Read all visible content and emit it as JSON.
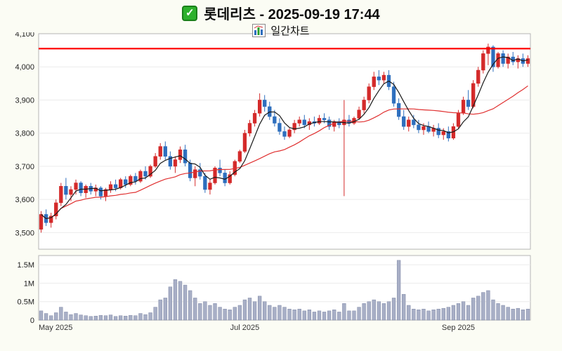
{
  "header": {
    "title": "롯데리츠 - 2025-09-19 17:44",
    "subtitle": "일간차트",
    "icons": {
      "checkbox": "green-check-icon",
      "chart": "mini-bar-chart-icon"
    }
  },
  "chart_data": {
    "type": "candlestick",
    "title": "롯데리츠 일간차트",
    "legend_position": "none",
    "grid": true,
    "candle_format": "[open, high, low, close, volume_millions]",
    "price_axis": {
      "min": 3450,
      "max": 4100,
      "ticks": [
        {
          "value": 4100,
          "label": "4,100"
        },
        {
          "value": 4000,
          "label": "4,000"
        },
        {
          "value": 3900,
          "label": "3,900"
        },
        {
          "value": 3800,
          "label": "3,800"
        },
        {
          "value": 3700,
          "label": "3,700"
        },
        {
          "value": 3600,
          "label": "3,600"
        },
        {
          "value": 3500,
          "label": "3,500"
        }
      ]
    },
    "volume_axis": {
      "max": 1.75,
      "ticks": [
        {
          "value": 1.5,
          "label": "1.5M"
        },
        {
          "value": 1.0,
          "label": "1M"
        },
        {
          "value": 0.5,
          "label": "0.5M"
        },
        {
          "value": 0,
          "label": "0"
        }
      ]
    },
    "x_ticks": [
      {
        "index": 0,
        "label": "May 2025",
        "align": "start"
      },
      {
        "index": 41,
        "label": "Jul 2025",
        "align": "middle"
      },
      {
        "index": 84,
        "label": "Sep 2025",
        "align": "middle"
      }
    ],
    "resistance_line": 4055,
    "ma_short_period": 5,
    "ma_long_period": 20,
    "colors": {
      "up": "#d42a2a",
      "down": "#2e6fbe",
      "volume": "#a8afc6",
      "volume_edge": "#7f88a6",
      "resistance": "#ff0000",
      "ma_short": "#1a1a1a",
      "ma_long": "#e03030",
      "grid": "#ececec",
      "border": "#b5b5b5"
    },
    "candles": [
      [
        3510,
        3565,
        3500,
        3555,
        0.25
      ],
      [
        3555,
        3570,
        3520,
        3530,
        0.18
      ],
      [
        3530,
        3560,
        3515,
        3550,
        0.12
      ],
      [
        3550,
        3600,
        3540,
        3590,
        0.2
      ],
      [
        3590,
        3650,
        3580,
        3640,
        0.35
      ],
      [
        3640,
        3665,
        3600,
        3615,
        0.22
      ],
      [
        3615,
        3640,
        3595,
        3630,
        0.15
      ],
      [
        3630,
        3660,
        3615,
        3650,
        0.18
      ],
      [
        3650,
        3655,
        3610,
        3620,
        0.14
      ],
      [
        3620,
        3645,
        3605,
        3640,
        0.12
      ],
      [
        3640,
        3650,
        3615,
        3625,
        0.1
      ],
      [
        3625,
        3645,
        3610,
        3635,
        0.11
      ],
      [
        3635,
        3640,
        3600,
        3610,
        0.13
      ],
      [
        3610,
        3635,
        3595,
        3630,
        0.12
      ],
      [
        3630,
        3655,
        3620,
        3645,
        0.14
      ],
      [
        3645,
        3660,
        3625,
        3635,
        0.1
      ],
      [
        3635,
        3665,
        3630,
        3660,
        0.12
      ],
      [
        3660,
        3670,
        3635,
        3645,
        0.11
      ],
      [
        3645,
        3675,
        3640,
        3670,
        0.13
      ],
      [
        3670,
        3680,
        3645,
        3655,
        0.12
      ],
      [
        3655,
        3690,
        3650,
        3685,
        0.18
      ],
      [
        3685,
        3700,
        3660,
        3670,
        0.15
      ],
      [
        3670,
        3705,
        3665,
        3700,
        0.2
      ],
      [
        3700,
        3740,
        3695,
        3730,
        0.35
      ],
      [
        3730,
        3770,
        3720,
        3760,
        0.55
      ],
      [
        3760,
        3775,
        3720,
        3730,
        0.6
      ],
      [
        3730,
        3745,
        3690,
        3700,
        0.9
      ],
      [
        3700,
        3730,
        3680,
        3720,
        1.1
      ],
      [
        3720,
        3760,
        3710,
        3750,
        1.05
      ],
      [
        3750,
        3765,
        3700,
        3710,
        0.95
      ],
      [
        3710,
        3720,
        3655,
        3665,
        0.8
      ],
      [
        3665,
        3700,
        3640,
        3690,
        0.6
      ],
      [
        3690,
        3710,
        3660,
        3670,
        0.45
      ],
      [
        3670,
        3680,
        3620,
        3630,
        0.5
      ],
      [
        3630,
        3660,
        3615,
        3650,
        0.4
      ],
      [
        3650,
        3700,
        3645,
        3695,
        0.45
      ],
      [
        3695,
        3720,
        3670,
        3680,
        0.35
      ],
      [
        3680,
        3690,
        3640,
        3650,
        0.3
      ],
      [
        3650,
        3685,
        3645,
        3675,
        0.28
      ],
      [
        3675,
        3720,
        3670,
        3715,
        0.35
      ],
      [
        3715,
        3750,
        3710,
        3745,
        0.4
      ],
      [
        3745,
        3810,
        3740,
        3800,
        0.55
      ],
      [
        3800,
        3840,
        3790,
        3830,
        0.6
      ],
      [
        3830,
        3870,
        3820,
        3860,
        0.5
      ],
      [
        3860,
        3920,
        3850,
        3900,
        0.65
      ],
      [
        3900,
        3915,
        3865,
        3880,
        0.5
      ],
      [
        3880,
        3895,
        3840,
        3850,
        0.4
      ],
      [
        3850,
        3870,
        3820,
        3830,
        0.35
      ],
      [
        3830,
        3845,
        3795,
        3805,
        0.4
      ],
      [
        3805,
        3820,
        3780,
        3790,
        0.35
      ],
      [
        3790,
        3815,
        3785,
        3810,
        0.3
      ],
      [
        3810,
        3840,
        3800,
        3830,
        0.28
      ],
      [
        3830,
        3850,
        3820,
        3840,
        0.3
      ],
      [
        3840,
        3855,
        3815,
        3825,
        0.25
      ],
      [
        3825,
        3845,
        3810,
        3835,
        0.28
      ],
      [
        3835,
        3850,
        3820,
        3830,
        0.22
      ],
      [
        3830,
        3855,
        3825,
        3845,
        0.25
      ],
      [
        3845,
        3860,
        3830,
        3840,
        0.22
      ],
      [
        3840,
        3850,
        3810,
        3820,
        0.25
      ],
      [
        3820,
        3840,
        3805,
        3835,
        0.28
      ],
      [
        3835,
        3845,
        3815,
        3825,
        0.22
      ],
      [
        3825,
        3900,
        3610,
        3840,
        0.45
      ],
      [
        3840,
        3855,
        3820,
        3830,
        0.25
      ],
      [
        3830,
        3850,
        3825,
        3845,
        0.25
      ],
      [
        3845,
        3880,
        3840,
        3870,
        0.35
      ],
      [
        3870,
        3910,
        3860,
        3900,
        0.45
      ],
      [
        3900,
        3950,
        3890,
        3940,
        0.5
      ],
      [
        3940,
        3985,
        3930,
        3970,
        0.55
      ],
      [
        3970,
        3990,
        3945,
        3960,
        0.5
      ],
      [
        3960,
        3985,
        3950,
        3975,
        0.45
      ],
      [
        3975,
        3990,
        3930,
        3940,
        0.5
      ],
      [
        3940,
        3955,
        3880,
        3890,
        0.6
      ],
      [
        3890,
        3905,
        3840,
        3850,
        1.62
      ],
      [
        3850,
        3870,
        3810,
        3820,
        0.7
      ],
      [
        3820,
        3850,
        3805,
        3840,
        0.4
      ],
      [
        3840,
        3855,
        3815,
        3825,
        0.3
      ],
      [
        3825,
        3840,
        3800,
        3810,
        0.28
      ],
      [
        3810,
        3830,
        3795,
        3820,
        0.3
      ],
      [
        3820,
        3835,
        3800,
        3805,
        0.25
      ],
      [
        3805,
        3825,
        3790,
        3815,
        0.28
      ],
      [
        3815,
        3830,
        3785,
        3795,
        0.3
      ],
      [
        3795,
        3815,
        3780,
        3805,
        0.32
      ],
      [
        3805,
        3820,
        3775,
        3785,
        0.35
      ],
      [
        3785,
        3830,
        3780,
        3820,
        0.4
      ],
      [
        3820,
        3870,
        3815,
        3860,
        0.45
      ],
      [
        3860,
        3910,
        3855,
        3900,
        0.5
      ],
      [
        3900,
        3930,
        3870,
        3880,
        0.4
      ],
      [
        3880,
        3960,
        3875,
        3950,
        0.6
      ],
      [
        3950,
        4000,
        3940,
        3990,
        0.65
      ],
      [
        3990,
        4050,
        3980,
        4040,
        0.75
      ],
      [
        4040,
        4070,
        4005,
        4060,
        0.8
      ],
      [
        4060,
        4065,
        3985,
        4000,
        0.55
      ],
      [
        4000,
        4045,
        3995,
        4040,
        0.45
      ],
      [
        4040,
        4050,
        4000,
        4010,
        0.4
      ],
      [
        4010,
        4040,
        3995,
        4030,
        0.35
      ],
      [
        4030,
        4045,
        4005,
        4015,
        0.3
      ],
      [
        4015,
        4035,
        3995,
        4025,
        0.32
      ],
      [
        4025,
        4040,
        4000,
        4010,
        0.28
      ],
      [
        4010,
        4035,
        4000,
        4025,
        0.3
      ]
    ]
  }
}
